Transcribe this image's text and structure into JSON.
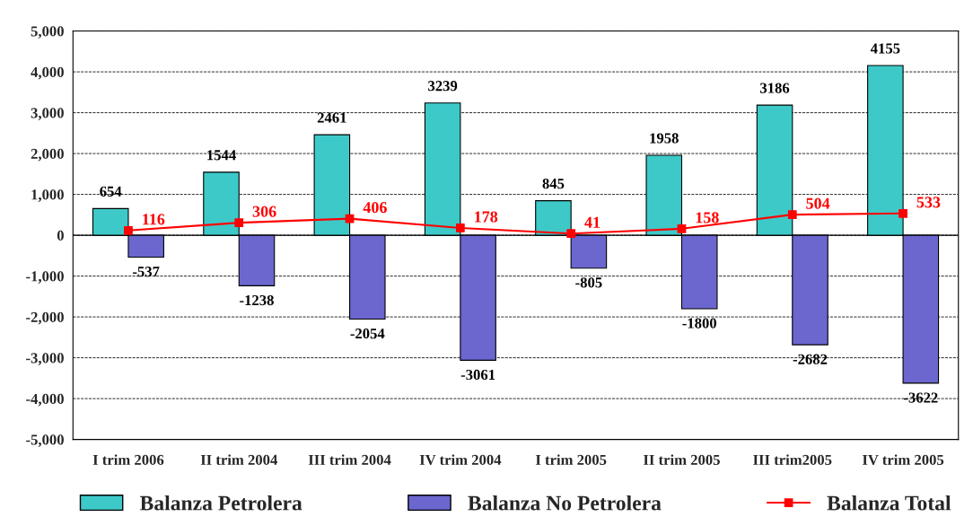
{
  "chart_data": {
    "type": "bar",
    "categories": [
      "I trim 2006",
      "II trim 2004",
      "III trim 2004",
      "IV trim 2004",
      "I trim 2005",
      "II trim 2005",
      "III trim2005",
      "IV trim 2005"
    ],
    "series": [
      {
        "name": "Balanza Petrolera",
        "color": "#3ec9c9",
        "values": [
          654,
          1544,
          2461,
          3239,
          845,
          1958,
          3186,
          4155
        ]
      },
      {
        "name": "Balanza No Petrolera",
        "color": "#6b67cf",
        "values": [
          -537,
          -1238,
          -2054,
          -3061,
          -805,
          -1800,
          -2682,
          -3622
        ]
      },
      {
        "name": "Balanza Total",
        "type": "line",
        "color": "#ff0000",
        "marker": "square",
        "values": [
          116,
          306,
          406,
          178,
          41,
          158,
          504,
          533
        ]
      }
    ],
    "ylim": [
      -5000,
      5000
    ],
    "yticks": [
      {
        "value": -5000,
        "label": "-5,000"
      },
      {
        "value": -4000,
        "label": "-4,000"
      },
      {
        "value": -3000,
        "label": "-3,000"
      },
      {
        "value": -2000,
        "label": "-2,000"
      },
      {
        "value": -1000,
        "label": "-1,000"
      },
      0,
      {
        "value": 1000,
        "label": "1,000"
      },
      {
        "value": 2000,
        "label": "2,000"
      },
      {
        "value": 3000,
        "label": "3,000"
      },
      {
        "value": 4000,
        "label": "4,000"
      },
      {
        "value": 5000,
        "label": "5,000"
      }
    ],
    "grid": "y",
    "legend": "bottom",
    "data_labels": true
  }
}
